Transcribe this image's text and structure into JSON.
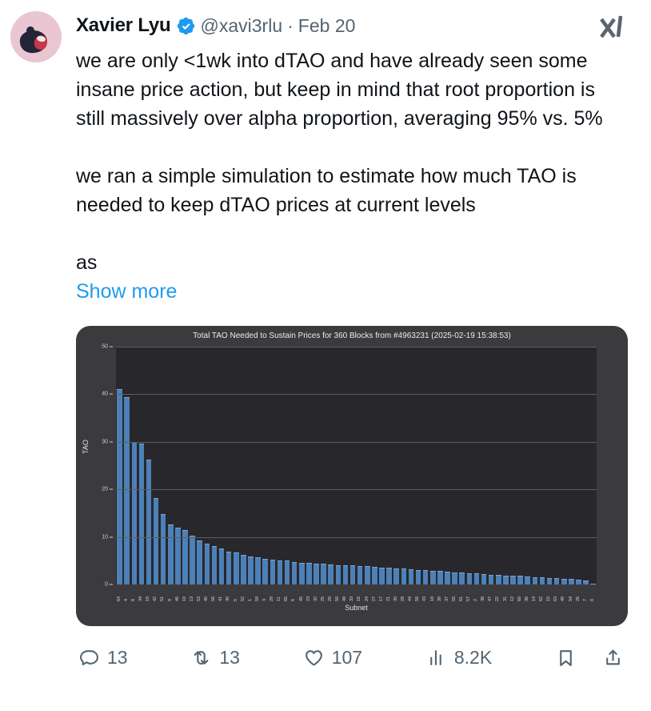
{
  "header": {
    "display_name": "Xavier Lyu",
    "handle": "@xavi3rlu",
    "separator": "·",
    "date": "Feb 20",
    "verified": true
  },
  "body": {
    "paragraphs": [
      "we are only <1wk into dTAO and have already seen some insane price action, but keep in mind that root proportion is still massively over alpha proportion, averaging 95% vs. 5%",
      "we ran a simple simulation to estimate how much TAO is needed to keep dTAO prices at current levels",
      "as"
    ],
    "show_more_label": "Show more"
  },
  "chart_data": {
    "type": "bar",
    "title": "Total TAO Needed to Sustain Prices for 360 Blocks from #4963231 (2025-02-19 15:38:53)",
    "xlabel": "Subnet",
    "ylabel": "TAO",
    "ylim": [
      0,
      50
    ],
    "yticks": [
      0,
      10,
      20,
      30,
      40,
      50
    ],
    "grid": true,
    "legend_position": "none",
    "bar_color": "#4d80b7",
    "plot_bg": "#28282c",
    "figure_bg": "#3b3b3e",
    "categories": [
      "64",
      "4",
      "8",
      "34",
      "19",
      "42",
      "51",
      "9",
      "46",
      "10",
      "13",
      "53",
      "40",
      "56",
      "41",
      "30",
      "5",
      "52",
      "1",
      "59",
      "3",
      "29",
      "11",
      "65",
      "6",
      "45",
      "23",
      "32",
      "25",
      "20",
      "50",
      "48",
      "33",
      "16",
      "24",
      "27",
      "17",
      "21",
      "35",
      "28",
      "44",
      "58",
      "43",
      "18",
      "39",
      "37",
      "55",
      "61",
      "57",
      "2",
      "38",
      "47",
      "22",
      "31",
      "12",
      "60",
      "36",
      "14",
      "62",
      "15",
      "63",
      "49",
      "54",
      "26",
      "7",
      "0"
    ],
    "values": [
      41.0,
      39.4,
      29.9,
      29.7,
      26.3,
      18.2,
      14.9,
      12.7,
      12.0,
      11.4,
      10.3,
      9.3,
      8.6,
      8.0,
      7.5,
      6.9,
      6.7,
      6.2,
      5.9,
      5.7,
      5.4,
      5.2,
      5.1,
      5.0,
      4.7,
      4.6,
      4.5,
      4.4,
      4.3,
      4.2,
      4.1,
      4.1,
      4.0,
      3.9,
      3.8,
      3.7,
      3.6,
      3.5,
      3.4,
      3.3,
      3.2,
      3.1,
      3.0,
      2.9,
      2.8,
      2.7,
      2.6,
      2.5,
      2.4,
      2.3,
      2.2,
      2.1,
      2.0,
      1.9,
      1.9,
      1.8,
      1.7,
      1.6,
      1.5,
      1.4,
      1.3,
      1.2,
      1.1,
      1.0,
      0.8,
      0.2
    ]
  },
  "engagement": {
    "replies": "13",
    "reposts": "13",
    "likes": "107",
    "views": "8.2K"
  },
  "icons": {
    "verified": "blue-verified-seal",
    "logo": "xai-logo",
    "reply": "speech-bubble",
    "repost": "retweet-arrows",
    "like": "heart",
    "views": "bar-chart",
    "bookmark": "bookmark",
    "share": "share-arrow"
  },
  "colors": {
    "accent_blue": "#1d9bf0",
    "text": "#0f1419",
    "muted": "#536471",
    "card_bg": "#3b3b3e",
    "plot_bg": "#28282c",
    "bar": "#4d80b7"
  }
}
